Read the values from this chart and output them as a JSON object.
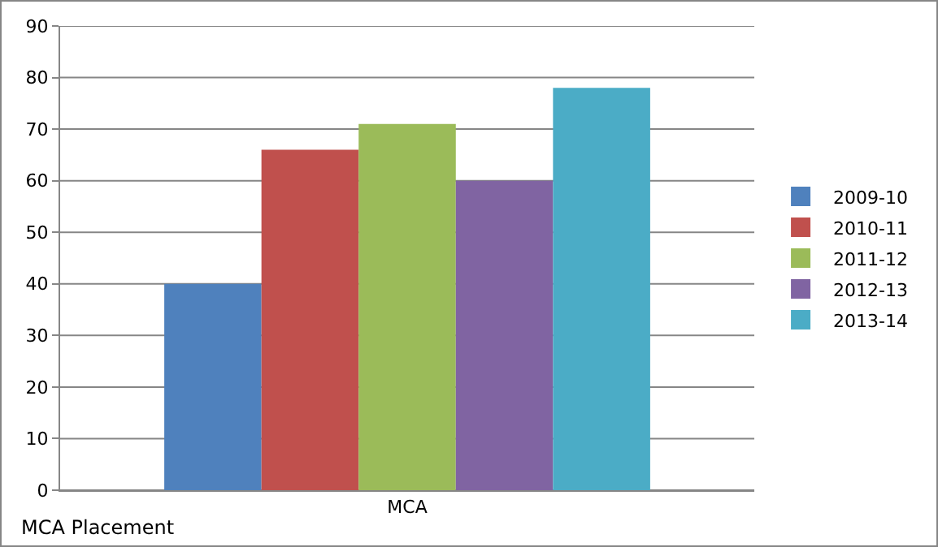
{
  "chart_data": {
    "type": "bar",
    "categories": [
      "MCA"
    ],
    "series": [
      {
        "name": "2009-10",
        "color": "#4f81bd",
        "values": [
          40
        ]
      },
      {
        "name": "2010-11",
        "color": "#c0504d",
        "values": [
          66
        ]
      },
      {
        "name": "2011-12",
        "color": "#9bbb59",
        "values": [
          71
        ]
      },
      {
        "name": "2012-13",
        "color": "#8064a2",
        "values": [
          60
        ]
      },
      {
        "name": "2013-14",
        "color": "#4bacc6",
        "values": [
          78
        ]
      }
    ],
    "ylim": [
      0,
      90
    ],
    "yticks": [
      0,
      10,
      20,
      30,
      40,
      50,
      60,
      70,
      80,
      90
    ],
    "grid": "y",
    "legend": "right",
    "annotations": [
      "MCA Placement"
    ]
  }
}
